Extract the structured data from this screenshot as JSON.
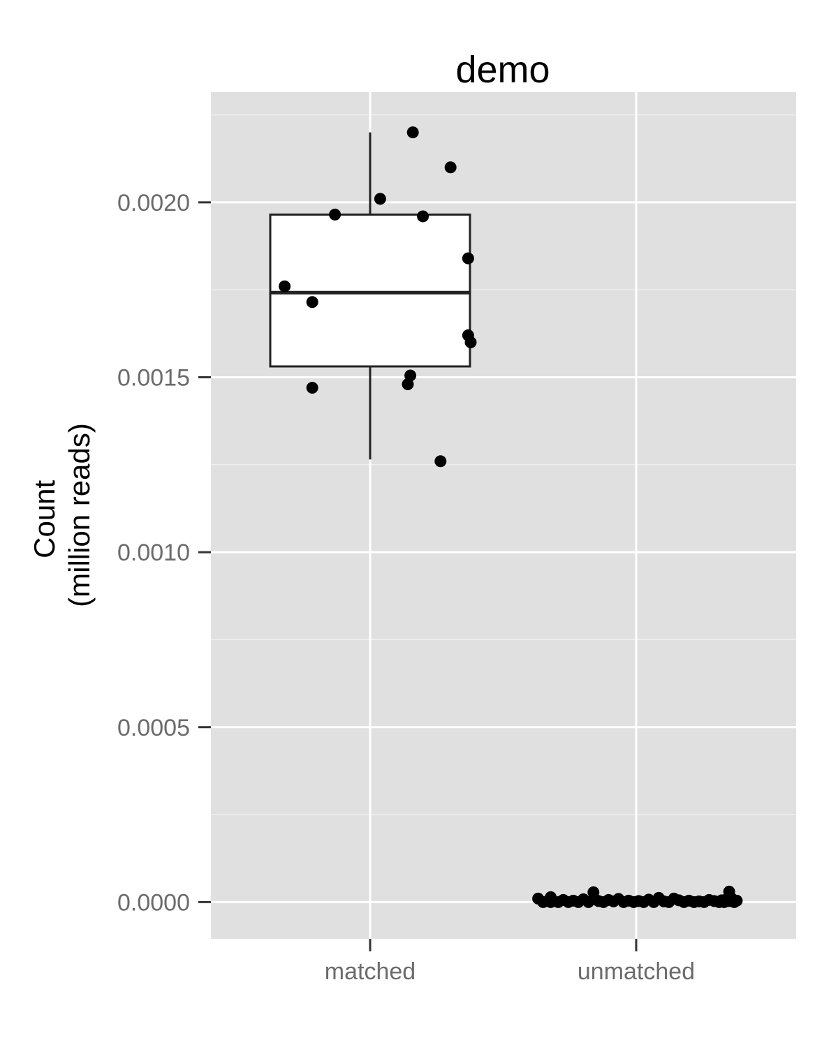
{
  "chart_data": {
    "type": "box",
    "title": "demo",
    "xlabel": "",
    "ylabel": [
      "Count",
      "(million reads)"
    ],
    "categories": [
      "matched",
      "unmatched"
    ],
    "ylim": [
      -0.000105,
      0.002315
    ],
    "yticks": [
      0.0,
      0.0005,
      0.001,
      0.0015,
      0.002
    ],
    "ytick_labels": [
      "0.0000",
      "0.0005",
      "0.0010",
      "0.0015",
      "0.0020"
    ],
    "grid": true,
    "legend": "none",
    "colors": {
      "panel": "#e0e0e0",
      "grid": "#ffffff",
      "points": "#000000",
      "box_fill": "#ffffff",
      "box_line": "#222222",
      "axis_text": "#6b6b6b"
    },
    "boxes": [
      {
        "category": "matched",
        "whisker_low": 0.001265,
        "q1": 0.001531,
        "median": 0.001742,
        "q3": 0.001965,
        "whisker_high": 0.0022
      },
      {
        "category": "unmatched",
        "whisker_low": 0.0,
        "q1": 0.0,
        "median": 1.5e-06,
        "q3": 3e-06,
        "whisker_high": 6e-06
      }
    ],
    "series": [
      {
        "category": "matched",
        "points": [
          {
            "x": 0.17,
            "y": 0.0022
          },
          {
            "x": 0.32,
            "y": 0.0021
          },
          {
            "x": 0.04,
            "y": 0.00201
          },
          {
            "x": -0.14,
            "y": 0.001965
          },
          {
            "x": 0.21,
            "y": 0.00196
          },
          {
            "x": 0.39,
            "y": 0.00184
          },
          {
            "x": -0.34,
            "y": 0.00176
          },
          {
            "x": -0.23,
            "y": 0.001715
          },
          {
            "x": 0.39,
            "y": 0.00162
          },
          {
            "x": 0.4,
            "y": 0.0016
          },
          {
            "x": 0.16,
            "y": 0.001505
          },
          {
            "x": 0.15,
            "y": 0.00148
          },
          {
            "x": -0.23,
            "y": 0.00147
          },
          {
            "x": 0.28,
            "y": 0.00126
          }
        ]
      },
      {
        "category": "unmatched",
        "points": [
          {
            "x": -0.39,
            "y": 1e-05
          },
          {
            "x": -0.37,
            "y": 0.0
          },
          {
            "x": -0.34,
            "y": 0.0
          },
          {
            "x": -0.34,
            "y": 1.4e-05
          },
          {
            "x": -0.31,
            "y": 0.0
          },
          {
            "x": -0.29,
            "y": 6e-06
          },
          {
            "x": -0.27,
            "y": 0.0
          },
          {
            "x": -0.25,
            "y": 4e-06
          },
          {
            "x": -0.23,
            "y": 0.0
          },
          {
            "x": -0.21,
            "y": 8e-06
          },
          {
            "x": -0.19,
            "y": 0.0
          },
          {
            "x": -0.17,
            "y": 2.8e-05
          },
          {
            "x": -0.15,
            "y": 3e-06
          },
          {
            "x": -0.13,
            "y": 0.0
          },
          {
            "x": -0.11,
            "y": 6e-06
          },
          {
            "x": -0.09,
            "y": 2e-06
          },
          {
            "x": -0.07,
            "y": 9e-06
          },
          {
            "x": -0.05,
            "y": 0.0
          },
          {
            "x": -0.03,
            "y": 4e-06
          },
          {
            "x": -0.01,
            "y": 0.0
          },
          {
            "x": 0.01,
            "y": 3e-06
          },
          {
            "x": 0.03,
            "y": 0.0
          },
          {
            "x": 0.05,
            "y": 7e-06
          },
          {
            "x": 0.07,
            "y": 0.0
          },
          {
            "x": 0.09,
            "y": 1.2e-05
          },
          {
            "x": 0.11,
            "y": 2e-06
          },
          {
            "x": 0.13,
            "y": 0.0
          },
          {
            "x": 0.15,
            "y": 1e-05
          },
          {
            "x": 0.17,
            "y": 5e-06
          },
          {
            "x": 0.19,
            "y": 0.0
          },
          {
            "x": 0.21,
            "y": 4e-06
          },
          {
            "x": 0.23,
            "y": 0.0
          },
          {
            "x": 0.25,
            "y": 2e-06
          },
          {
            "x": 0.27,
            "y": 0.0
          },
          {
            "x": 0.29,
            "y": 6e-06
          },
          {
            "x": 0.31,
            "y": 3e-06
          },
          {
            "x": 0.33,
            "y": 0.0
          },
          {
            "x": 0.34,
            "y": 5e-06
          },
          {
            "x": 0.35,
            "y": 0.0
          },
          {
            "x": 0.36,
            "y": 8e-06
          },
          {
            "x": 0.37,
            "y": 3e-06
          },
          {
            "x": 0.38,
            "y": 1e-05
          },
          {
            "x": 0.37,
            "y": 3e-05
          },
          {
            "x": 0.39,
            "y": 0.0
          },
          {
            "x": 0.4,
            "y": 4e-06
          }
        ]
      }
    ]
  }
}
